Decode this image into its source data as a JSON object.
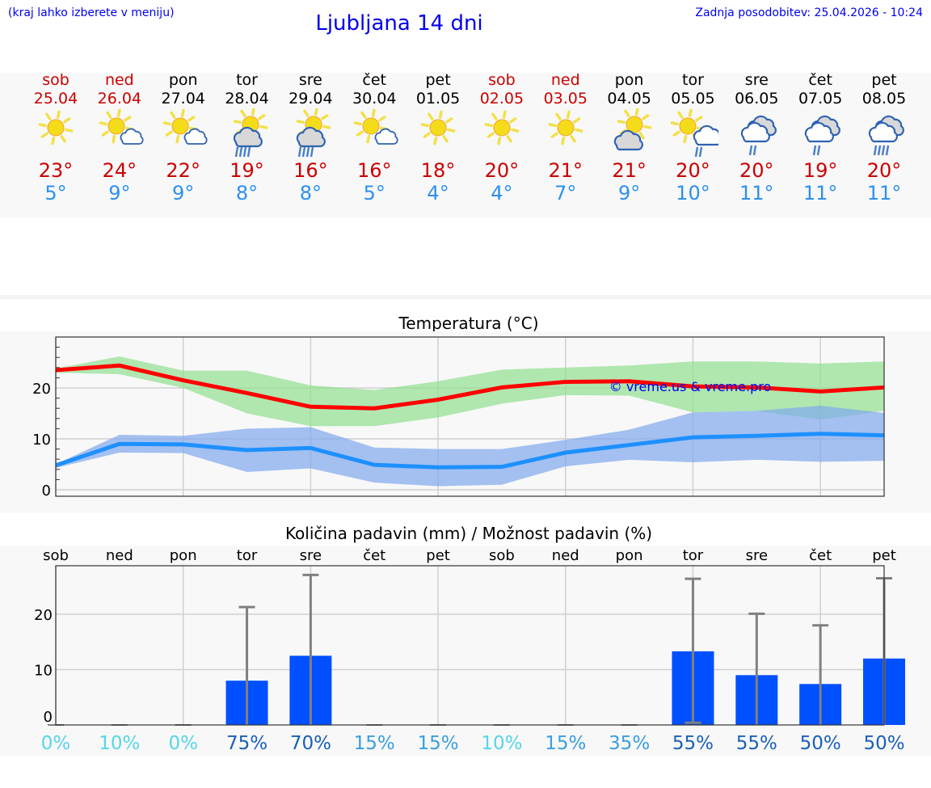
{
  "header": {
    "menu_hint": "(kraj lahko izberete v meniju)",
    "title": "Ljubljana 14 dni",
    "last_update": "Zadnja posodobitev: 25.04.2026 - 10:24"
  },
  "colors": {
    "weekend": "#cc0000",
    "weekday": "#000000",
    "tmax": "#cc0000",
    "tmin": "#2b90f0",
    "link": "#0000ee",
    "bar": "#0050ff"
  },
  "days": [
    {
      "name": "sob",
      "date": "25.04",
      "weekend": true,
      "icon": "sun-icon",
      "max": "23°",
      "min": "5°"
    },
    {
      "name": "ned",
      "date": "26.04",
      "weekend": true,
      "icon": "sun-cloud-icon",
      "max": "24°",
      "min": "9°"
    },
    {
      "name": "pon",
      "date": "27.04",
      "weekend": false,
      "icon": "sun-cloud-icon",
      "max": "22°",
      "min": "9°"
    },
    {
      "name": "tor",
      "date": "28.04",
      "weekend": false,
      "icon": "sun-rain-cloud-icon",
      "max": "19°",
      "min": "8°"
    },
    {
      "name": "sre",
      "date": "29.04",
      "weekend": false,
      "icon": "sun-rain-cloud-icon",
      "max": "16°",
      "min": "8°"
    },
    {
      "name": "čet",
      "date": "30.04",
      "weekend": false,
      "icon": "sun-cloud-icon",
      "max": "16°",
      "min": "5°"
    },
    {
      "name": "pet",
      "date": "01.05",
      "weekend": false,
      "icon": "sun-icon",
      "max": "18°",
      "min": "4°"
    },
    {
      "name": "sob",
      "date": "02.05",
      "weekend": true,
      "icon": "sun-icon",
      "max": "20°",
      "min": "4°"
    },
    {
      "name": "ned",
      "date": "03.05",
      "weekend": true,
      "icon": "sun-icon",
      "max": "21°",
      "min": "7°"
    },
    {
      "name": "pon",
      "date": "04.05",
      "weekend": false,
      "icon": "cloud-sun-icon",
      "max": "21°",
      "min": "9°"
    },
    {
      "name": "tor",
      "date": "05.05",
      "weekend": false,
      "icon": "sun-cloud-showers-icon",
      "max": "20°",
      "min": "10°"
    },
    {
      "name": "sre",
      "date": "06.05",
      "weekend": false,
      "icon": "cloudy-showers-icon",
      "max": "20°",
      "min": "11°"
    },
    {
      "name": "čet",
      "date": "07.05",
      "weekend": false,
      "icon": "cloudy-showers-icon",
      "max": "19°",
      "min": "11°"
    },
    {
      "name": "pet",
      "date": "08.05",
      "weekend": false,
      "icon": "cloudy-rain-icon",
      "max": "20°",
      "min": "11°"
    }
  ],
  "chart_data": [
    {
      "type": "line",
      "title": "Temperatura (°C)",
      "watermark": "© vreme.us & vreme.pro",
      "ylim": [
        -1,
        30
      ],
      "yticks": [
        "0",
        "10",
        "20"
      ],
      "ytick_values": [
        0,
        10,
        20
      ],
      "grid": true,
      "series": [
        {
          "name": "max",
          "color": "#ff0000",
          "values": [
            23.5,
            24.4,
            21.5,
            19.0,
            16.3,
            16.0,
            17.7,
            20.1,
            21.2,
            21.3,
            20.3,
            20.1,
            19.3,
            20.1
          ]
        },
        {
          "name": "min",
          "color": "#1e90ff",
          "values": [
            4.8,
            9.0,
            8.9,
            7.8,
            8.2,
            4.9,
            4.4,
            4.5,
            7.3,
            8.8,
            10.3,
            10.6,
            11.0,
            10.7
          ]
        }
      ],
      "bands": [
        {
          "name": "max-range",
          "color": "#90e090",
          "upper": [
            23.8,
            26.2,
            23.4,
            23.4,
            20.5,
            19.6,
            21.3,
            23.6,
            24.0,
            24.4,
            25.2,
            25.2,
            24.8,
            25.2
          ],
          "lower": [
            23.0,
            22.7,
            20.0,
            15.0,
            12.5,
            12.5,
            14.2,
            16.9,
            18.6,
            18.5,
            15.2,
            15.5,
            13.8,
            15.5
          ]
        },
        {
          "name": "min-range",
          "color": "#7fa8ee",
          "upper": [
            5.0,
            10.8,
            10.6,
            12.0,
            12.3,
            8.3,
            8.0,
            8.0,
            9.8,
            11.8,
            15.2,
            15.5,
            16.5,
            15.1
          ],
          "lower": [
            4.3,
            7.3,
            7.2,
            3.5,
            4.2,
            1.4,
            0.7,
            1.0,
            4.6,
            5.9,
            5.4,
            5.9,
            5.5,
            5.7
          ]
        }
      ]
    },
    {
      "type": "bar",
      "title": "Količina padavin (mm) / Možnost padavin (%)",
      "categories": [
        "sob",
        "ned",
        "pon",
        "tor",
        "sre",
        "čet",
        "pet",
        "sob",
        "ned",
        "pon",
        "tor",
        "sre",
        "čet",
        "pet"
      ],
      "values": [
        0,
        0,
        0,
        8.0,
        12.5,
        0,
        0,
        0,
        0,
        0,
        13.3,
        9.0,
        7.4,
        12.0
      ],
      "error_upper": [
        0,
        0,
        0,
        21.3,
        27.1,
        0,
        0,
        0,
        0,
        0,
        26.4,
        20.1,
        18.0,
        26.5
      ],
      "error_lower": [
        0,
        0,
        0,
        0,
        0,
        0,
        0,
        0,
        0,
        0,
        0.4,
        0,
        0,
        0
      ],
      "probability": [
        "0%",
        "10%",
        "0%",
        "75%",
        "70%",
        "15%",
        "15%",
        "10%",
        "15%",
        "35%",
        "55%",
        "55%",
        "50%",
        "50%"
      ],
      "probability_values": [
        0,
        10,
        0,
        75,
        70,
        15,
        15,
        10,
        15,
        35,
        55,
        55,
        50,
        50
      ],
      "ylim": [
        -1.5,
        28.8
      ],
      "yticks": [
        "0",
        "10",
        "20"
      ],
      "ytick_values": [
        0,
        10,
        20
      ],
      "grid": true
    }
  ]
}
